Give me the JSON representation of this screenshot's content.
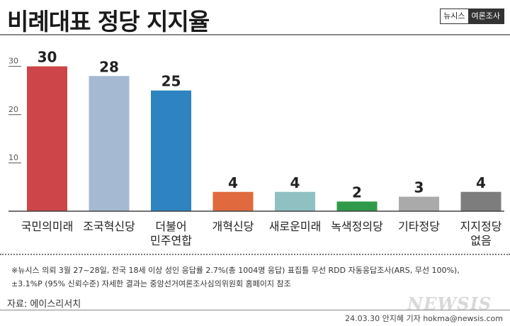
{
  "header": {
    "title": "비례대표 정당 지지율",
    "badge_left": "뉴시스",
    "badge_right": "여론조사"
  },
  "chart_data": {
    "type": "bar",
    "title": "비례대표 정당 지지율",
    "categories": [
      "국민의미래",
      "조국혁신당",
      "더불어\n민주연합",
      "개혁신당",
      "새로운미래",
      "녹색정의당",
      "기타정당",
      "지지정당\n없음"
    ],
    "values": [
      30,
      28,
      25,
      4,
      4,
      2,
      3,
      4
    ],
    "colors": [
      "#cd4548",
      "#a6b9d3",
      "#2d84c0",
      "#e06a3d",
      "#8fc1c3",
      "#2e9a4a",
      "#aaaaaa",
      "#7d7d7d"
    ],
    "yticks": [
      10,
      20,
      30
    ],
    "ylim": [
      0,
      32
    ],
    "grid": false,
    "legend": "none"
  },
  "footer": {
    "note_line1": "※뉴시스 의뢰 3월 27~28일, 전국 18세 이상 성인 응답률 2.7%(총 1004명 응답) 표집틀 무선 RDD 자동응답조사(ARS, 무선 100%),",
    "note_line2": "±3.1%P (95% 신뢰수준) 자세한 결과는 중앙선거여론조사심의위원회 홈페이지 참조",
    "source": "자료: 에이스리서치",
    "logo": "NEWSIS",
    "credit": "24.03.30 안지혜 기자 hokma@newsis.com"
  }
}
